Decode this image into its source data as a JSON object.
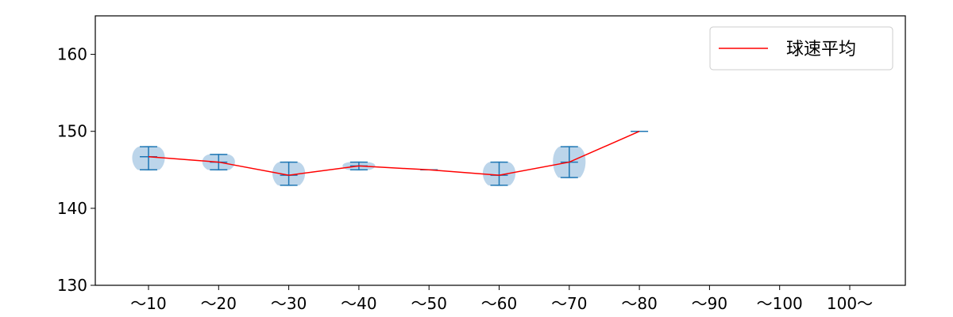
{
  "chart_data": {
    "type": "violin",
    "title": "",
    "xlabel": "",
    "ylabel": "",
    "categories": [
      "～10",
      "～20",
      "～30",
      "～40",
      "～50",
      "～60",
      "～70",
      "～80",
      "～90",
      "～100",
      "100～"
    ],
    "ylim": [
      130,
      165
    ],
    "yticks": [
      130,
      140,
      150,
      160
    ],
    "grid": false,
    "legend": {
      "position": "top-right",
      "entries": [
        "球速平均"
      ]
    },
    "colors": {
      "mean_line": "#ff0000",
      "violin_fill": "#bcd5ea",
      "whisker": "#1f77b4"
    },
    "violins": [
      {
        "category": "～10",
        "min": 145,
        "max": 148,
        "median": 146.7
      },
      {
        "category": "～20",
        "min": 145,
        "max": 147,
        "median": 146
      },
      {
        "category": "～30",
        "min": 143,
        "max": 146,
        "median": 144.3
      },
      {
        "category": "～40",
        "min": 145,
        "max": 146,
        "median": 145.5
      },
      {
        "category": "～50",
        "min": 145,
        "max": 145,
        "median": 145
      },
      {
        "category": "～60",
        "min": 143,
        "max": 146,
        "median": 144.3
      },
      {
        "category": "～70",
        "min": 144,
        "max": 148,
        "median": 146
      },
      {
        "category": "～80",
        "min": 150,
        "max": 150,
        "median": 150
      }
    ],
    "series": [
      {
        "name": "球速平均",
        "values": [
          146.7,
          146.0,
          144.3,
          145.5,
          145.0,
          144.3,
          146.0,
          150.0,
          null,
          null,
          null
        ]
      }
    ]
  }
}
